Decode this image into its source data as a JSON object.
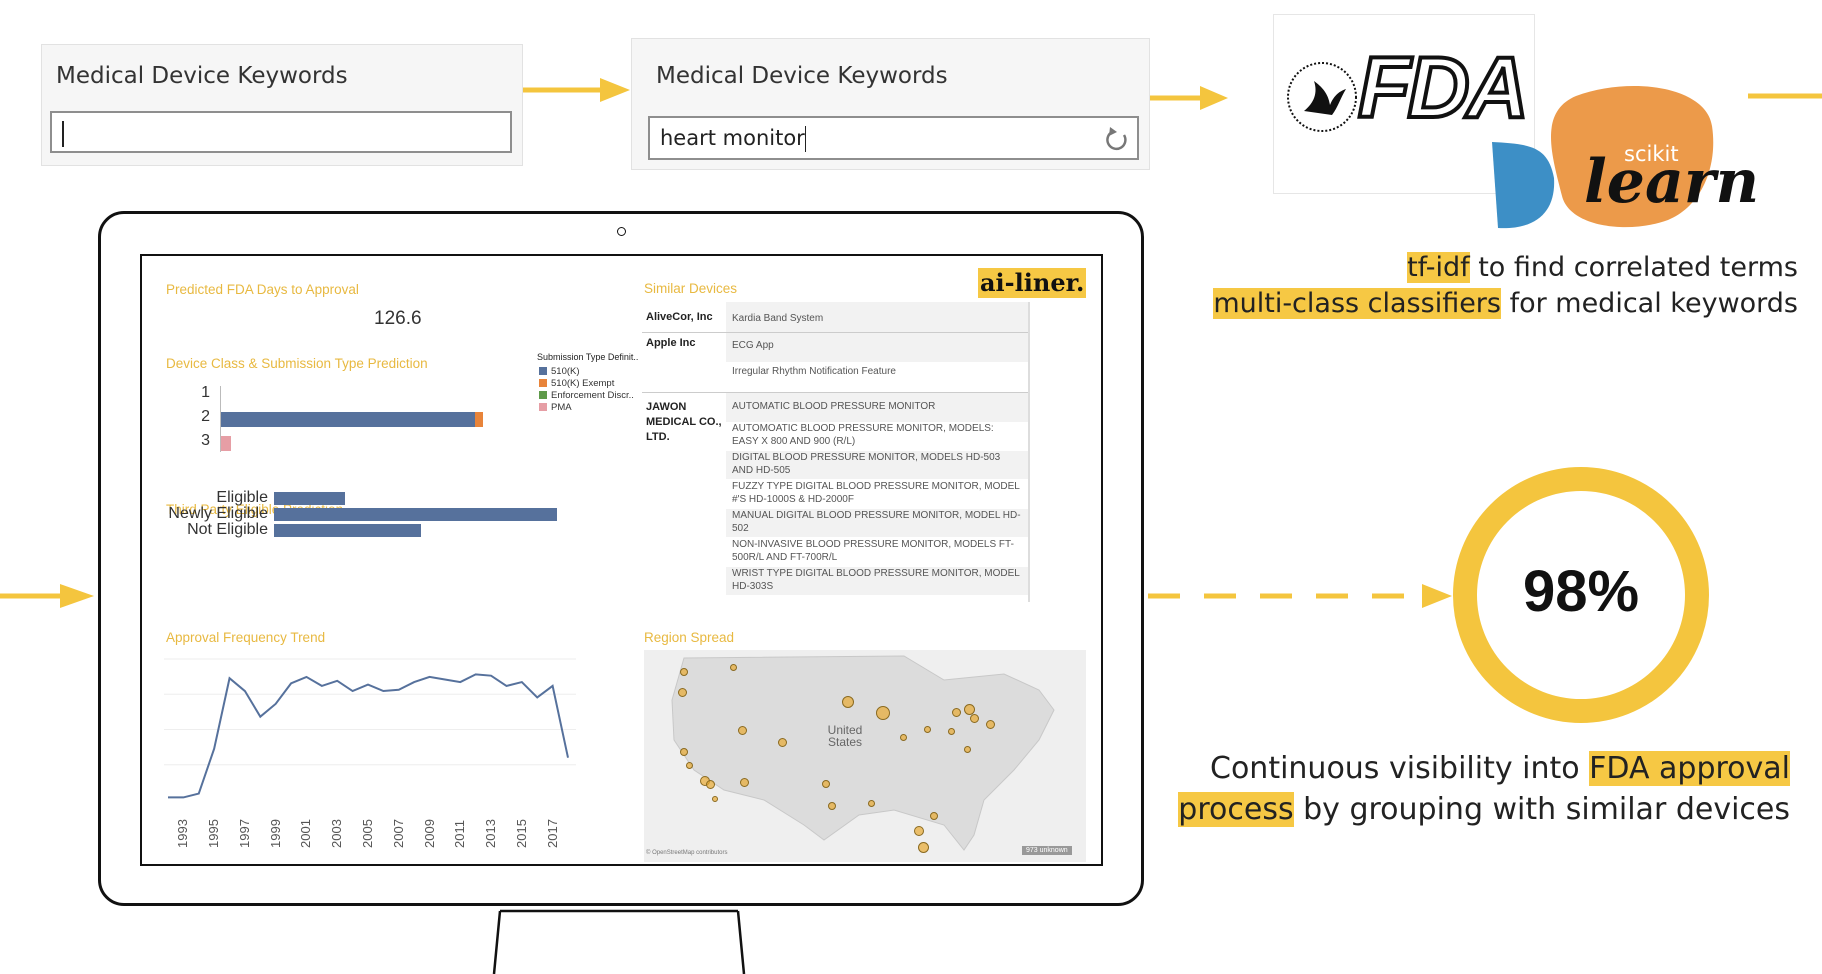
{
  "keyword_box_1": {
    "title": "Medical Device Keywords",
    "value": ""
  },
  "keyword_box_2": {
    "title": "Medical Device Keywords",
    "value": "heart monitor"
  },
  "logos": {
    "fda": "FDA",
    "fda_seal": "DEPARTMENT OF HEALTH & HUMAN SERVICES · USA",
    "sklearn_small": "scikit",
    "sklearn_big": "learn"
  },
  "caption_top": {
    "line1_highlight": "tf-idf",
    "line1_rest": " to find correlated terms",
    "line2_highlight": "multi-class classifiers",
    "line2_rest": " for medical keywords"
  },
  "accuracy": {
    "value": "98%"
  },
  "caption_bottom": {
    "pre": "Continuous visibility into ",
    "highlight1": "FDA approval",
    "highlight2": "process",
    "post": " by grouping with similar devices"
  },
  "dashboard": {
    "brand": "ai-liner.",
    "predicted_days": {
      "title": "Predicted FDA Days to Approval",
      "value": "126.6"
    },
    "class_prediction": {
      "title": "Device Class & Submission Type Prediction",
      "legend_title": "Submission Type Definit..",
      "legend": [
        {
          "label": "510(K)",
          "color": "#56719c"
        },
        {
          "label": "510(K) Exempt",
          "color": "#e8843a"
        },
        {
          "label": "Enforcement Discr..",
          "color": "#5f9a4a"
        },
        {
          "label": "PMA",
          "color": "#e69ea5"
        }
      ]
    },
    "third_party": {
      "title": "Third Party Eligible Prediction"
    },
    "approval_trend": {
      "title": "Approval Frequency Trend"
    },
    "region": {
      "title": "Region Spread",
      "label": "United States",
      "credit": "© OpenStreetMap contributors",
      "unknown": "973 unknown"
    },
    "similar_devices": {
      "title": "Similar Devices",
      "companies": [
        {
          "name": "AliveCor, Inc",
          "devices": [
            "Kardia Band System"
          ]
        },
        {
          "name": "Apple Inc",
          "devices": [
            "ECG App",
            "Irregular Rhythm Notification Feature"
          ]
        },
        {
          "name": "JAWON MEDICAL CO., LTD.",
          "devices": [
            "AUTOMATIC BLOOD PRESSURE MONITOR",
            "AUTOMOATIC BLOOD PRESSURE MONITOR, MODELS: EASY X 800 AND 900 (R/L)",
            "DIGITAL BLOOD PRESSURE MONITOR, MODELS HD-503 AND HD-505",
            "FUZZY TYPE DIGITAL BLOOD PRESSURE MONITOR, MODEL #'S HD-1000S & HD-2000F",
            "MANUAL DIGITAL BLOOD PRESSURE MONITOR, MODEL HD-502",
            "NON-INVASIVE BLOOD PRESSURE MONITOR, MODELS FT-500R/L AND FT-700R/L",
            "WRIST TYPE DIGITAL BLOOD PRESSURE MONITOR, MODEL HD-303S"
          ]
        }
      ]
    }
  },
  "chart_data": [
    {
      "type": "bar",
      "title": "Device Class & Submission Type Prediction",
      "categories": [
        "1",
        "2",
        "3"
      ],
      "series": [
        {
          "name": "510(K)",
          "values": [
            0.0,
            0.97,
            0.0
          ]
        },
        {
          "name": "510(K) Exempt",
          "values": [
            0.0,
            0.03,
            0.0
          ]
        },
        {
          "name": "Enforcement Discr..",
          "values": [
            0.0,
            0.0,
            0.0
          ]
        },
        {
          "name": "PMA",
          "values": [
            0.0,
            0.0,
            0.04
          ]
        }
      ]
    },
    {
      "type": "bar",
      "title": "Third Party Eligible Prediction",
      "categories": [
        "Eligible",
        "Newly Eligible",
        "Not Eligible"
      ],
      "values": [
        0.25,
        1.0,
        0.52
      ]
    },
    {
      "type": "line",
      "title": "Approval Frequency Trend",
      "x": [
        1992,
        1993,
        1994,
        1995,
        1996,
        1997,
        1998,
        1999,
        2000,
        2001,
        2002,
        2003,
        2004,
        2005,
        2006,
        2007,
        2008,
        2009,
        2010,
        2011,
        2012,
        2013,
        2014,
        2015,
        2016,
        2017,
        2018
      ],
      "y": [
        2,
        2,
        5,
        40,
        95,
        85,
        65,
        75,
        91,
        96,
        89,
        93,
        85,
        90,
        85,
        86,
        92,
        96,
        94,
        92,
        98,
        97,
        89,
        92,
        80,
        89,
        33
      ],
      "ylim": [
        0,
        110
      ],
      "xticks": [
        "1993",
        "1995",
        "1997",
        "1999",
        "2001",
        "2003",
        "2005",
        "2007",
        "2009",
        "2011",
        "2013",
        "2015",
        "2017"
      ]
    }
  ]
}
